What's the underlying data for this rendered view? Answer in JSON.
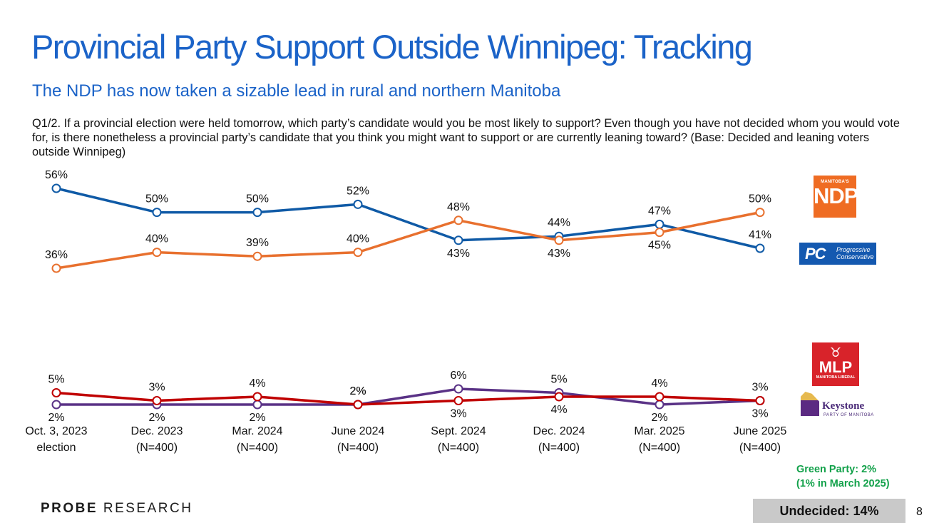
{
  "title": "Provincial Party Support Outside Winnipeg: Tracking",
  "subtitle": "The NDP has now taken a sizable lead in rural and northern Manitoba",
  "question": "Q1/2. If a provincial election were held tomorrow, which party’s candidate would you be most likely to support? Even though you have not decided whom you would vote for, is there nonetheless a provincial party’s candidate that you think you might want to support or are currently leaning toward? (Base: Decided and leaning voters outside Winnipeg)",
  "logos": {
    "ndp": {
      "small": "MANITOBA'S",
      "big": "NDP"
    },
    "pc": {
      "mark": "PC",
      "line1": "Progressive",
      "line2": "Conservative"
    },
    "liberal": {
      "big": "MLP",
      "small": "MANITOBA LIBERAL"
    },
    "keystone": {
      "name": "Keystone",
      "sub": "PARTY OF MANITOBA"
    }
  },
  "green_note": {
    "line1": "Green Party: 2%",
    "line2": "(1% in March 2025)"
  },
  "undecided": "Undecided: 14%",
  "page_number": "8",
  "footer": {
    "brand_bold": "PROBE",
    "brand_rest": "RESEARCH"
  },
  "chart_data": {
    "type": "line",
    "categories": [
      [
        "Oct. 3, 2023",
        "election"
      ],
      [
        "Dec. 2023",
        "(N=400)"
      ],
      [
        "Mar. 2024",
        "(N=400)"
      ],
      [
        "June 2024",
        "(N=400)"
      ],
      [
        "Sept. 2024",
        "(N=400)"
      ],
      [
        "Dec. 2024",
        "(N=400)"
      ],
      [
        "Mar. 2025",
        "(N=400)"
      ],
      [
        "June 2025",
        "(N=400)"
      ]
    ],
    "series": [
      {
        "key": "pc",
        "color": "#0f5aa6",
        "values": [
          56,
          50,
          50,
          52,
          43,
          44,
          47,
          41
        ],
        "label_pos": [
          "above",
          "above",
          "above",
          "above",
          "below",
          "above",
          "above",
          "above"
        ]
      },
      {
        "key": "ndp",
        "color": "#e8702e",
        "values": [
          36,
          40,
          39,
          40,
          48,
          43,
          45,
          50
        ],
        "label_pos": [
          "above",
          "above",
          "above",
          "above",
          "above",
          "below",
          "below",
          "above"
        ]
      },
      {
        "key": "liberal",
        "color": "#c00000",
        "values": [
          5,
          3,
          4,
          2,
          3,
          4,
          4,
          3
        ],
        "label_pos": [
          "above",
          "above",
          "above",
          "above",
          "below",
          "below",
          "above",
          "above"
        ]
      },
      {
        "key": "keystone",
        "color": "#5a3286",
        "values": [
          2,
          2,
          2,
          2,
          6,
          5,
          2,
          3
        ],
        "label_pos": [
          "below",
          "below",
          "below",
          "above",
          "above",
          "above",
          "below",
          "below"
        ]
      }
    ],
    "value_suffix": "%"
  }
}
